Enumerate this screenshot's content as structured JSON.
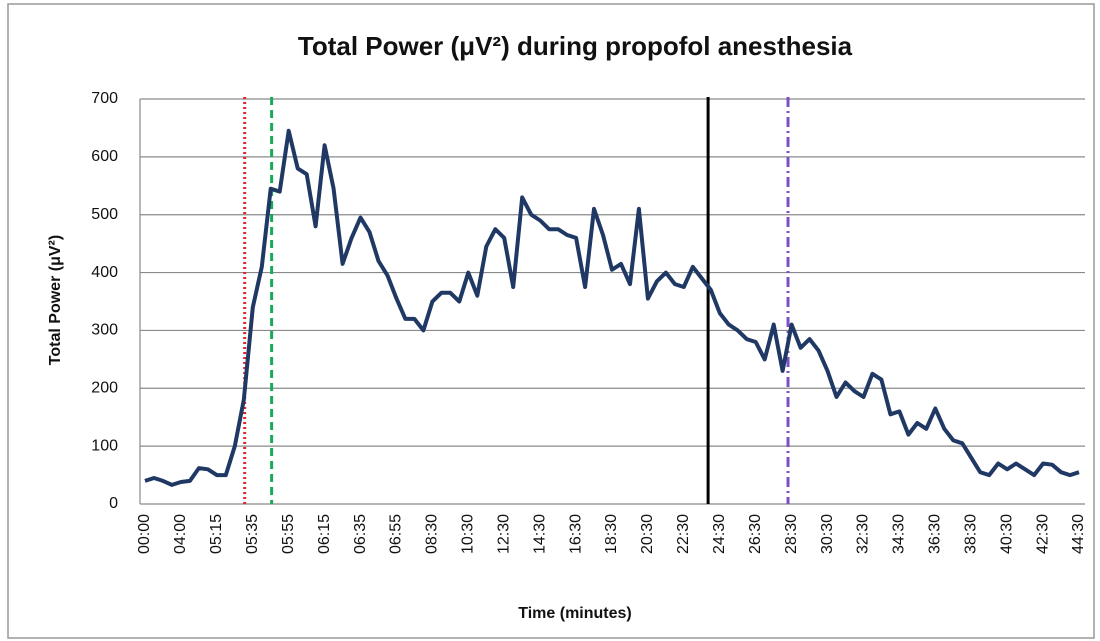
{
  "chart_data": {
    "type": "line",
    "title": "Total Power (μV²) during propofol anesthesia",
    "x_label": "Time (minutes)",
    "y_label": "Total Power (μV²)",
    "categories": [
      "00:00",
      null,
      null,
      null,
      "04:00",
      null,
      null,
      null,
      "05:15",
      null,
      null,
      null,
      "05:35",
      null,
      null,
      null,
      "05:55",
      null,
      null,
      null,
      "06:15",
      null,
      null,
      null,
      "06:35",
      null,
      null,
      null,
      "06:55",
      null,
      null,
      null,
      "08:30",
      null,
      null,
      null,
      "10:30",
      null,
      null,
      null,
      "12:30",
      null,
      null,
      null,
      "14:30",
      null,
      null,
      null,
      "16:30",
      null,
      null,
      null,
      "18:30",
      null,
      null,
      null,
      "20:30",
      null,
      null,
      null,
      "22:30",
      null,
      null,
      null,
      "24:30",
      null,
      null,
      null,
      "26:30",
      null,
      null,
      null,
      "28:30",
      null,
      null,
      null,
      "30:30",
      null,
      null,
      null,
      "32:30",
      null,
      null,
      null,
      "34:30",
      null,
      null,
      null,
      "36:30",
      null,
      null,
      null,
      "38:30",
      null,
      null,
      null,
      "40:30",
      null,
      null,
      null,
      "42:30",
      null,
      null,
      null,
      "44:30"
    ],
    "values": [
      40,
      45,
      40,
      33,
      38,
      40,
      62,
      60,
      50,
      50,
      100,
      180,
      340,
      410,
      545,
      540,
      645,
      580,
      570,
      480,
      620,
      545,
      415,
      460,
      495,
      470,
      420,
      395,
      355,
      320,
      320,
      300,
      350,
      365,
      365,
      350,
      400,
      360,
      445,
      475,
      460,
      375,
      530,
      500,
      490,
      475,
      475,
      465,
      460,
      375,
      510,
      465,
      405,
      415,
      380,
      510,
      355,
      385,
      400,
      380,
      375,
      410,
      390,
      370,
      330,
      310,
      300,
      285,
      280,
      250,
      310,
      230,
      310,
      270,
      285,
      265,
      230,
      185,
      210,
      195,
      185,
      225,
      215,
      155,
      160,
      120,
      140,
      130,
      165,
      130,
      110,
      105,
      80,
      55,
      50,
      70,
      60,
      70,
      60,
      50,
      70,
      68,
      55,
      50,
      55
    ],
    "color": "#1f3864",
    "ylim": [
      0,
      700
    ],
    "yticks": [
      0,
      100,
      200,
      300,
      400,
      500,
      600,
      700
    ],
    "grid": true,
    "vlines": [
      {
        "at": 11.1,
        "color": "#e8222a",
        "style": "dotted"
      },
      {
        "at": 14.1,
        "color": "#1aa85a",
        "style": "dashed"
      },
      {
        "at": 62.7,
        "color": "#000000",
        "style": "solid"
      },
      {
        "at": 71.6,
        "color": "#7b4fc9",
        "style": "dashdot"
      }
    ]
  }
}
